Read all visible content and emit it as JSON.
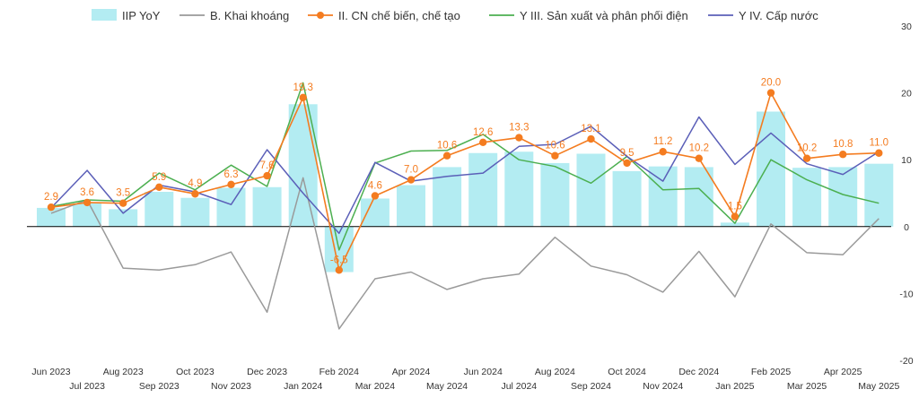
{
  "chart_data": {
    "type": "bar",
    "categories": [
      "Jun 2023",
      "Jul 2023",
      "Aug 2023",
      "Sep 2023",
      "Oct 2023",
      "Nov 2023",
      "Dec 2023",
      "Jan 2024",
      "Feb 2024",
      "Mar 2024",
      "Apr 2024",
      "May 2024",
      "Jun 2024",
      "Jul 2024",
      "Aug 2024",
      "Sep 2024",
      "Oct 2024",
      "Nov 2024",
      "Dec 2024",
      "Jan 2025",
      "Feb 2025",
      "Mar 2025",
      "Apr 2025",
      "May 2025"
    ],
    "ylim": [
      -20,
      30
    ],
    "yticks": [
      -20,
      -10,
      0,
      10,
      20,
      30
    ],
    "grid": false,
    "legend_position": "top",
    "series": [
      {
        "name": "IIP YoY",
        "kind": "bar",
        "color": "#B3ECF2",
        "values": [
          2.8,
          3.5,
          2.6,
          5.2,
          4.3,
          5.8,
          5.9,
          18.3,
          -6.8,
          4.2,
          6.2,
          8.9,
          11.0,
          11.2,
          9.5,
          10.9,
          8.3,
          9.0,
          8.9,
          0.6,
          17.2,
          8.8,
          8.9,
          9.4
        ]
      },
      {
        "name": "B. Khai khoáng",
        "kind": "line",
        "color": "#9A9A9A",
        "values": [
          2.0,
          4.0,
          -6.2,
          -6.5,
          -5.7,
          -3.8,
          -12.8,
          7.3,
          -15.3,
          -7.8,
          -6.8,
          -9.4,
          -7.8,
          -7.1,
          -1.6,
          -5.9,
          -7.2,
          -9.8,
          -3.7,
          -10.5,
          0.4,
          -3.9,
          -4.2,
          1.2
        ]
      },
      {
        "name": "II. CN chế biến, chế tạo",
        "kind": "line-marker",
        "color": "#F47C20",
        "values": [
          2.9,
          3.6,
          3.5,
          5.9,
          4.9,
          6.3,
          7.6,
          19.3,
          -6.5,
          4.6,
          7.0,
          10.6,
          12.6,
          13.3,
          10.6,
          13.1,
          9.5,
          11.2,
          10.2,
          1.5,
          20.0,
          10.2,
          10.8,
          11.0
        ]
      },
      {
        "name": "Y III. Sản xuất và phân phối điện",
        "kind": "line",
        "color": "#4CAF50",
        "values": [
          3.0,
          4.0,
          3.8,
          8.0,
          5.5,
          9.2,
          6.0,
          21.5,
          -3.5,
          9.5,
          11.3,
          11.4,
          13.8,
          10.0,
          9.0,
          6.5,
          10.5,
          5.5,
          5.7,
          0.5,
          10.0,
          7.0,
          4.8,
          3.5
        ]
      },
      {
        "name": "Y IV. Cấp nước",
        "kind": "line",
        "color": "#5B5FB8",
        "values": [
          2.8,
          8.4,
          2.0,
          6.2,
          5.2,
          3.3,
          11.5,
          5.0,
          -1.0,
          9.6,
          6.8,
          7.5,
          8.0,
          12.0,
          12.3,
          15.0,
          10.5,
          6.8,
          16.4,
          9.3,
          14.0,
          9.4,
          7.8,
          11.2
        ]
      }
    ],
    "data_labels": {
      "series": "II. CN chế biến, chế tạo",
      "values": [
        "2.9",
        "3.6",
        "3.5",
        "5.9",
        "4.9",
        "6.3",
        "7.6",
        "19.3",
        "-6.5",
        "4.6",
        "7.0",
        "10.6",
        "12.6",
        "13.3",
        "10.6",
        "13.1",
        "9.5",
        "11.2",
        "10.2",
        "1.5",
        "20.0",
        "10.2",
        "10.8",
        "11.0"
      ]
    }
  }
}
